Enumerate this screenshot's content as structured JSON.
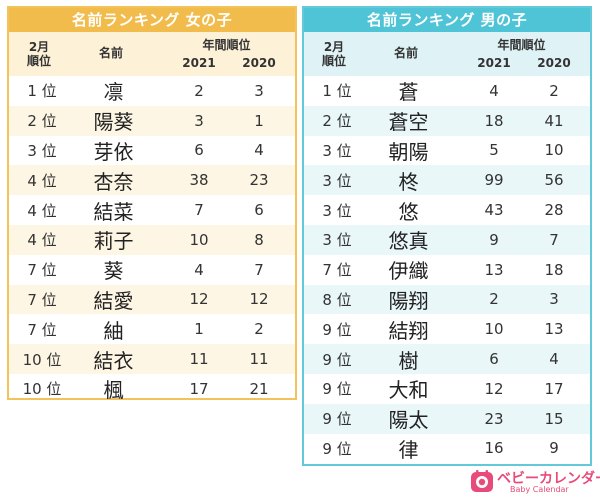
{
  "girls": {
    "title": "名前ランキング 女の子",
    "headers": {
      "rank": "2月\n順位",
      "name": "名前",
      "group": "年間順位",
      "y2021": "2021",
      "y2020": "2020"
    },
    "rows": [
      {
        "rank": "1 位",
        "name": "凛",
        "v2021": "2",
        "v2020": "3"
      },
      {
        "rank": "2 位",
        "name": "陽葵",
        "v2021": "3",
        "v2020": "1"
      },
      {
        "rank": "3 位",
        "name": "芽依",
        "v2021": "6",
        "v2020": "4"
      },
      {
        "rank": "4 位",
        "name": "杏奈",
        "v2021": "38",
        "v2020": "23"
      },
      {
        "rank": "4 位",
        "name": "結菜",
        "v2021": "7",
        "v2020": "6"
      },
      {
        "rank": "4 位",
        "name": "莉子",
        "v2021": "10",
        "v2020": "8"
      },
      {
        "rank": "7 位",
        "name": "葵",
        "v2021": "4",
        "v2020": "7"
      },
      {
        "rank": "7 位",
        "name": "結愛",
        "v2021": "12",
        "v2020": "12"
      },
      {
        "rank": "7 位",
        "name": "紬",
        "v2021": "1",
        "v2020": "2"
      },
      {
        "rank": "10 位",
        "name": "結衣",
        "v2021": "11",
        "v2020": "11"
      },
      {
        "rank": "10 位",
        "name": "楓",
        "v2021": "17",
        "v2020": "21"
      }
    ]
  },
  "boys": {
    "title": "名前ランキング 男の子",
    "headers": {
      "rank": "2月\n順位",
      "name": "名前",
      "group": "年間順位",
      "y2021": "2021",
      "y2020": "2020"
    },
    "rows": [
      {
        "rank": "1 位",
        "name": "蒼",
        "v2021": "4",
        "v2020": "2"
      },
      {
        "rank": "2 位",
        "name": "蒼空",
        "v2021": "18",
        "v2020": "41"
      },
      {
        "rank": "3 位",
        "name": "朝陽",
        "v2021": "5",
        "v2020": "10"
      },
      {
        "rank": "3 位",
        "name": "柊",
        "v2021": "99",
        "v2020": "56"
      },
      {
        "rank": "3 位",
        "name": "悠",
        "v2021": "43",
        "v2020": "28"
      },
      {
        "rank": "3 位",
        "name": "悠真",
        "v2021": "9",
        "v2020": "7"
      },
      {
        "rank": "7 位",
        "name": "伊織",
        "v2021": "13",
        "v2020": "18"
      },
      {
        "rank": "8 位",
        "name": "陽翔",
        "v2021": "2",
        "v2020": "3"
      },
      {
        "rank": "9 位",
        "name": "結翔",
        "v2021": "10",
        "v2020": "13"
      },
      {
        "rank": "9 位",
        "name": "樹",
        "v2021": "6",
        "v2020": "4"
      },
      {
        "rank": "9 位",
        "name": "大和",
        "v2021": "12",
        "v2020": "17"
      },
      {
        "rank": "9 位",
        "name": "陽太",
        "v2021": "23",
        "v2020": "15"
      },
      {
        "rank": "9 位",
        "name": "律",
        "v2021": "16",
        "v2020": "9"
      }
    ]
  },
  "logo": {
    "main": "ベビーカレンダー",
    "sub": "Baby Calendar",
    "icon": "baby-calendar-logo-icon",
    "color": "#e84a7a"
  },
  "colors": {
    "girl_accent": "#f2bc4c",
    "boy_accent": "#4fc4d6"
  }
}
